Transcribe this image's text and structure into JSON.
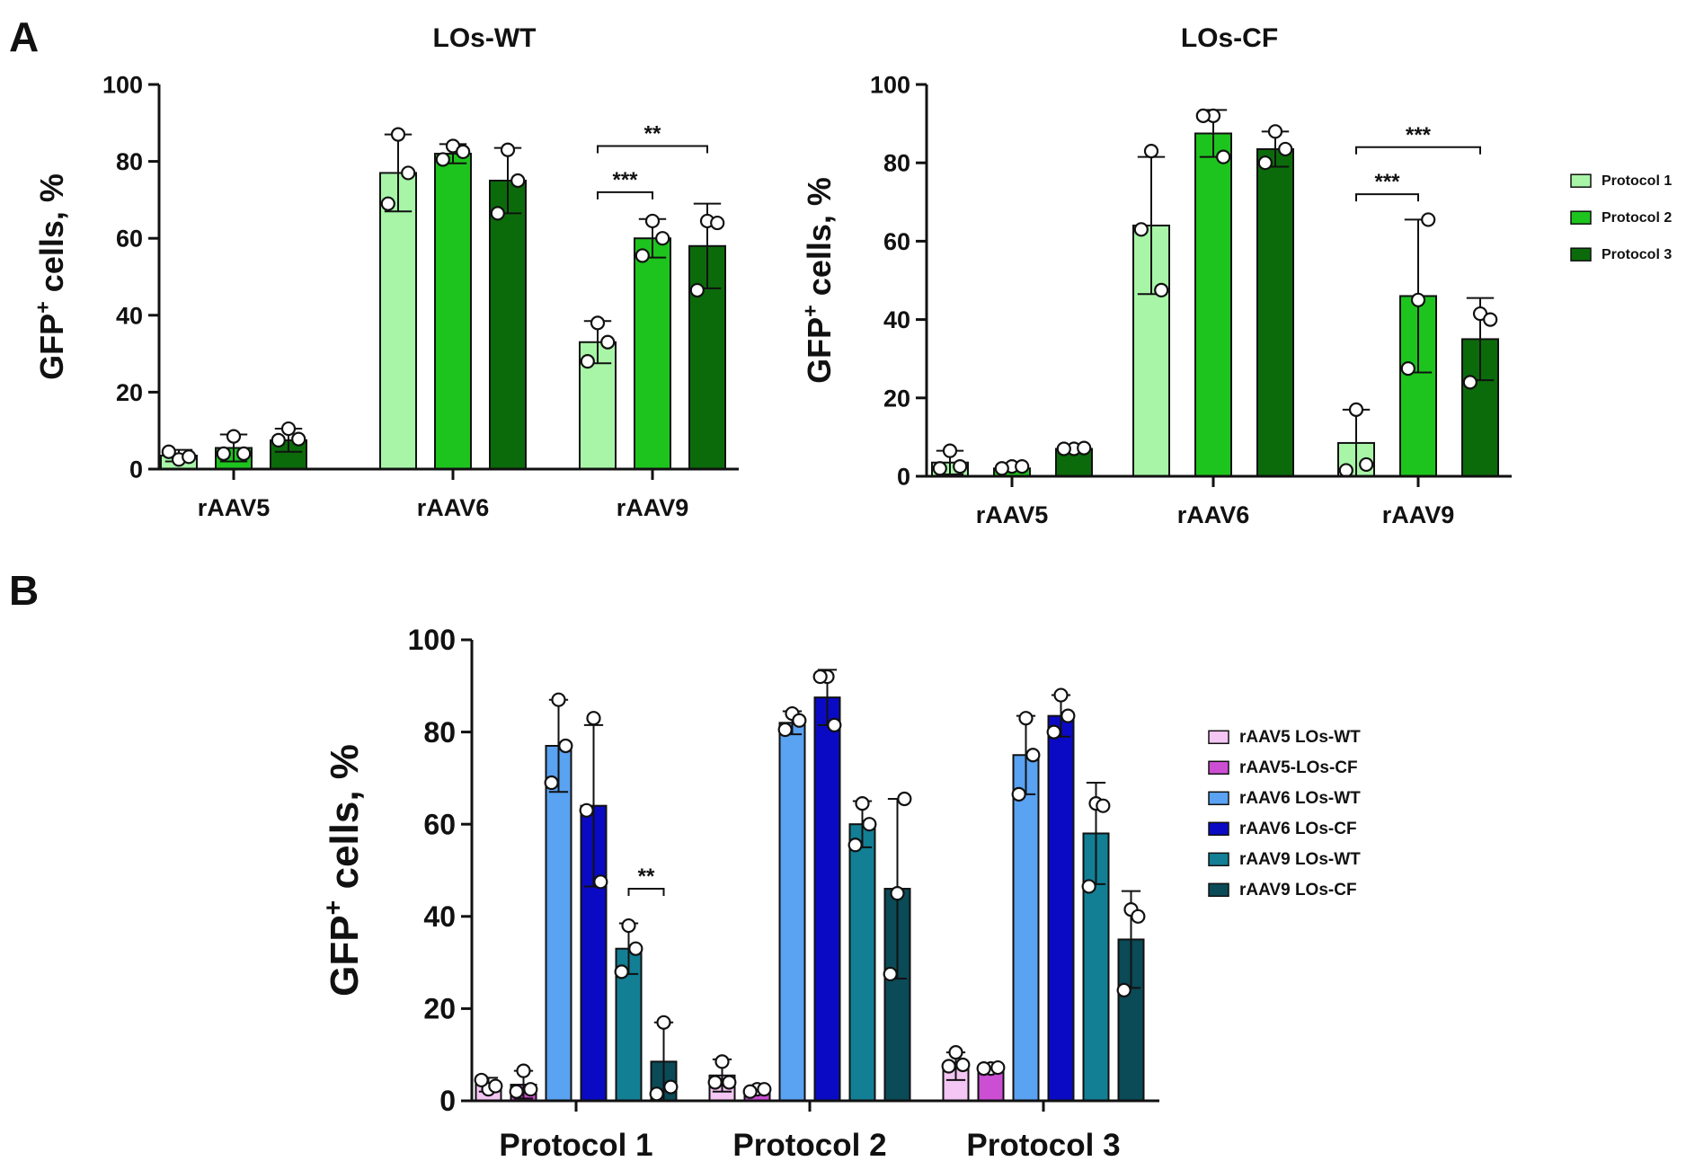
{
  "panels": {
    "a": "A",
    "b": "B"
  },
  "chart_data": [
    {
      "id": "A-left",
      "type": "bar",
      "title": "LOs-WT",
      "ylabel": "GFP+ cells, %",
      "ylabel_main": "GFP",
      "ylabel_sup": "+",
      "ylabel_rest": " cells, %",
      "ylim": [
        0,
        100
      ],
      "yticks": [
        0,
        20,
        40,
        60,
        80,
        100
      ],
      "categories": [
        "rAAV5",
        "rAAV6",
        "rAAV9"
      ],
      "series": [
        {
          "name": "Protocol 1",
          "color": "#a8f5a8",
          "values": [
            3.5,
            77,
            33
          ],
          "errors": [
            1.5,
            10,
            5.5
          ],
          "points": [
            [
              2.5,
              4.5,
              3.2
            ],
            [
              87,
              69,
              77
            ],
            [
              38,
              28,
              33
            ]
          ]
        },
        {
          "name": "Protocol 2",
          "color": "#1ec41e",
          "values": [
            5.5,
            82,
            60
          ],
          "errors": [
            3.5,
            2.5,
            5
          ],
          "points": [
            [
              8.5,
              4,
              4
            ],
            [
              84,
              80.5,
              82.5
            ],
            [
              64.5,
              55.5,
              60
            ]
          ]
        },
        {
          "name": "Protocol 3",
          "color": "#0b6b0b",
          "values": [
            7.5,
            75,
            58
          ],
          "errors": [
            3,
            8.5,
            11
          ],
          "points": [
            [
              10.5,
              7.5,
              7.8
            ],
            [
              83,
              66.5,
              75
            ],
            [
              64.5,
              46.5,
              64
            ]
          ]
        }
      ],
      "annotations": [
        {
          "text": "**",
          "group": 2,
          "from": 0,
          "to": 2,
          "y": 84
        },
        {
          "text": "***",
          "group": 2,
          "from": 0,
          "to": 1,
          "y": 72
        }
      ],
      "grid": false
    },
    {
      "id": "A-right",
      "type": "bar",
      "title": "LOs-CF",
      "ylabel": "GFP+ cells, %",
      "ylabel_main": "GFP",
      "ylabel_sup": "+",
      "ylabel_rest": " cells, %",
      "ylim": [
        0,
        100
      ],
      "yticks": [
        0,
        20,
        40,
        60,
        80,
        100
      ],
      "categories": [
        "rAAV5",
        "rAAV6",
        "rAAV9"
      ],
      "series": [
        {
          "name": "Protocol 1",
          "color": "#a8f5a8",
          "values": [
            3.5,
            64,
            8.5
          ],
          "errors": [
            3,
            17.5,
            8.5
          ],
          "points": [
            [
              6.5,
              2,
              2.5
            ],
            [
              83,
              63,
              47.5
            ],
            [
              17,
              1.5,
              3
            ]
          ]
        },
        {
          "name": "Protocol 2",
          "color": "#1ec41e",
          "values": [
            2,
            87.5,
            46
          ],
          "errors": [
            0.5,
            6,
            19.5
          ],
          "points": [
            [
              2.5,
              2,
              2.5
            ],
            [
              92,
              92,
              81.5
            ],
            [
              45,
              27.5,
              65.5
            ]
          ]
        },
        {
          "name": "Protocol 3",
          "color": "#0b6b0b",
          "values": [
            7,
            83.5,
            35
          ],
          "errors": [
            0.5,
            4.5,
            10.5
          ],
          "points": [
            [
              7,
              7,
              7.2
            ],
            [
              88,
              80,
              83.5
            ],
            [
              41.5,
              24,
              40
            ]
          ]
        }
      ],
      "annotations": [
        {
          "text": "***",
          "group": 2,
          "from": 0,
          "to": 2,
          "y": 84
        },
        {
          "text": "***",
          "group": 2,
          "from": 0,
          "to": 1,
          "y": 72
        }
      ],
      "legend": {
        "position": "right",
        "entries": [
          "Protocol 1",
          "Protocol 2",
          "Protocol 3"
        ]
      },
      "grid": false
    },
    {
      "id": "B",
      "type": "bar",
      "title": "",
      "ylabel": "GFP+ cells, %",
      "ylabel_main": "GFP",
      "ylabel_sup": "+",
      "ylabel_rest": " cells, %",
      "ylim": [
        0,
        100
      ],
      "yticks": [
        0,
        20,
        40,
        60,
        80,
        100
      ],
      "categories": [
        "Protocol 1",
        "Protocol 2",
        "Protocol 3"
      ],
      "series": [
        {
          "name": "rAAV5 LOs-WT",
          "color": "#f3c6f3",
          "values": [
            3.5,
            5.5,
            7.5
          ],
          "errors": [
            1.5,
            3.5,
            3
          ],
          "points": [
            [
              2.5,
              4.5,
              3.2
            ],
            [
              8.5,
              4,
              4
            ],
            [
              10.5,
              7.5,
              7.8
            ]
          ]
        },
        {
          "name": "rAAV5-LOs-CF",
          "color": "#cc4fd3",
          "values": [
            3.5,
            2,
            7
          ],
          "errors": [
            3,
            0.5,
            0.5
          ],
          "points": [
            [
              6.5,
              2,
              2.5
            ],
            [
              2.5,
              2,
              2.5
            ],
            [
              7,
              7,
              7.2
            ]
          ]
        },
        {
          "name": "rAAV6 LOs-WT",
          "color": "#5aa2f2",
          "values": [
            77,
            82,
            75
          ],
          "errors": [
            10,
            2.5,
            8.5
          ],
          "points": [
            [
              87,
              69,
              77
            ],
            [
              84,
              80.5,
              82.5
            ],
            [
              83,
              66.5,
              75
            ]
          ]
        },
        {
          "name": "rAAV6 LOs-CF",
          "color": "#0a0ac4",
          "values": [
            64,
            87.5,
            83.5
          ],
          "errors": [
            17.5,
            6,
            4.5
          ],
          "points": [
            [
              83,
              63,
              47.5
            ],
            [
              92,
              92,
              81.5
            ],
            [
              88,
              80,
              83.5
            ]
          ]
        },
        {
          "name": "rAAV9 LOs-WT",
          "color": "#127f94",
          "values": [
            33,
            60,
            58
          ],
          "errors": [
            5.5,
            5,
            11
          ],
          "points": [
            [
              38,
              28,
              33
            ],
            [
              64.5,
              55.5,
              60
            ],
            [
              64.5,
              46.5,
              64
            ]
          ]
        },
        {
          "name": "rAAV9 LOs-CF",
          "color": "#0b4a57",
          "values": [
            8.5,
            46,
            35
          ],
          "errors": [
            8.5,
            19.5,
            10.5
          ],
          "points": [
            [
              17,
              1.5,
              3
            ],
            [
              45,
              27.5,
              65.5
            ],
            [
              41.5,
              24,
              40
            ]
          ]
        }
      ],
      "annotations": [
        {
          "text": "**",
          "group": 0,
          "from": 4,
          "to": 5,
          "y": 46
        }
      ],
      "legend": {
        "position": "right",
        "entries": [
          "rAAV5 LOs-WT",
          "rAAV5-LOs-CF",
          "rAAV6 LOs-WT",
          "rAAV6 LOs-CF",
          "rAAV9 LOs-WT",
          "rAAV9 LOs-CF"
        ]
      },
      "grid": false
    }
  ]
}
